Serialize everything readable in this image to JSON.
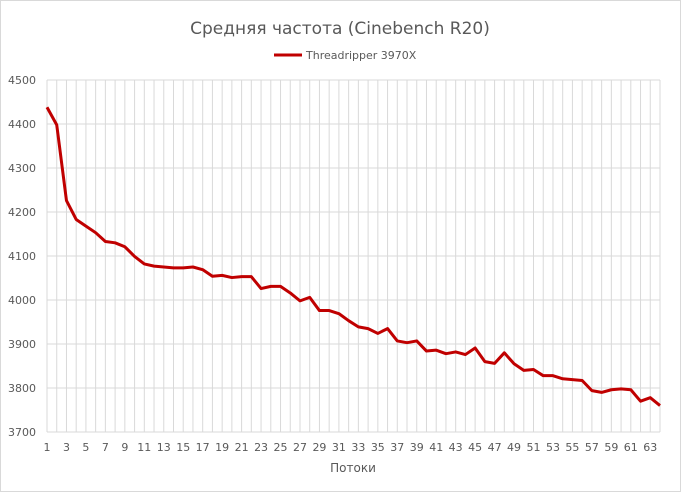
{
  "chart_data": {
    "type": "line",
    "title": "Средняя частота (Cinebench R20)",
    "xlabel": "Потоки",
    "ylabel": "",
    "ylim": [
      3700,
      4500
    ],
    "yticks": [
      3700,
      3800,
      3900,
      4000,
      4100,
      4200,
      4300,
      4400,
      4500
    ],
    "xlim": [
      1,
      64
    ],
    "xtick_step": 2,
    "grid": true,
    "legend": "top",
    "x": [
      1,
      2,
      3,
      4,
      5,
      6,
      7,
      8,
      9,
      10,
      11,
      12,
      13,
      14,
      15,
      16,
      17,
      18,
      19,
      20,
      21,
      22,
      23,
      24,
      25,
      26,
      27,
      28,
      29,
      30,
      31,
      32,
      33,
      34,
      35,
      36,
      37,
      38,
      39,
      40,
      41,
      42,
      43,
      44,
      45,
      46,
      47,
      48,
      49,
      50,
      51,
      52,
      53,
      54,
      55,
      56,
      57,
      58,
      59,
      60,
      61,
      62,
      63,
      64
    ],
    "series": [
      {
        "name": "Threadripper 3970X",
        "color": "#c00000",
        "values": [
          4438,
          4398,
          4226,
          4183,
          4168,
          4153,
          4133,
          4130,
          4121,
          4099,
          4082,
          4077,
          4075,
          4073,
          4073,
          4075,
          4069,
          4054,
          4056,
          4051,
          4053,
          4053,
          4026,
          4031,
          4031,
          4016,
          3998,
          4006,
          3976,
          3976,
          3969,
          3953,
          3939,
          3935,
          3924,
          3935,
          3907,
          3903,
          3907,
          3884,
          3886,
          3878,
          3882,
          3876,
          3891,
          3860,
          3856,
          3880,
          3855,
          3840,
          3842,
          3828,
          3828,
          3821,
          3819,
          3817,
          3794,
          3790,
          3796,
          3798,
          3796,
          3770,
          3778,
          3760
        ]
      }
    ]
  }
}
